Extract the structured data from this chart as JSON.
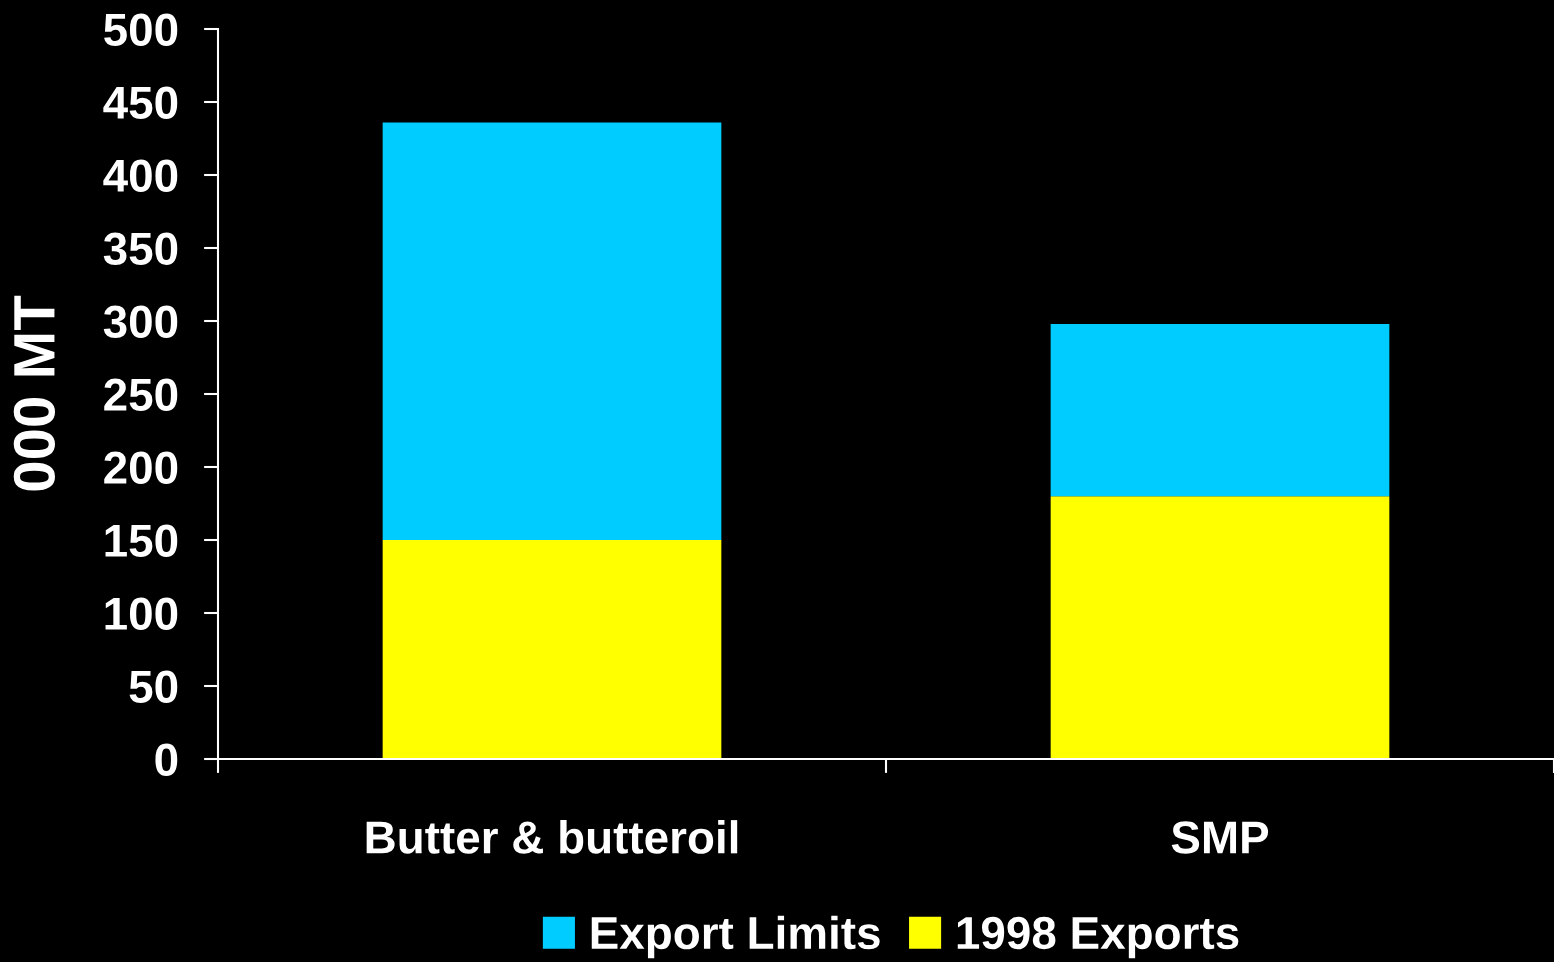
{
  "chart_data": {
    "type": "bar",
    "ylabel": "000 MT",
    "categories": [
      "Butter & butteroil",
      "SMP"
    ],
    "stacked": true,
    "series": [
      {
        "name": "1998 Exports",
        "color": "#ffff00",
        "values": [
          150,
          180
        ]
      },
      {
        "name": "Export Limits",
        "color": "#00ccff",
        "values": [
          286,
          118
        ]
      }
    ],
    "ylim": [
      0,
      500
    ],
    "yticks": [
      0,
      50,
      100,
      150,
      200,
      250,
      300,
      350,
      400,
      450,
      500
    ],
    "grid": false,
    "legend": "bottom"
  }
}
